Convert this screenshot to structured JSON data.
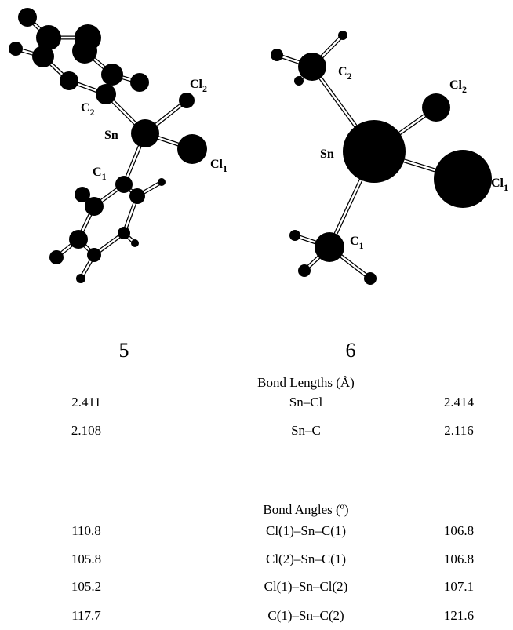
{
  "figures": [
    {
      "label": "5",
      "atoms": [
        {
          "symbol": "C",
          "subscript": "2"
        },
        {
          "symbol": "Sn"
        },
        {
          "symbol": "Cl",
          "subscript": "2"
        },
        {
          "symbol": "Cl",
          "subscript": "1"
        },
        {
          "symbol": "C",
          "subscript": "1"
        }
      ]
    },
    {
      "label": "6",
      "atoms": [
        {
          "symbol": "C",
          "subscript": "2"
        },
        {
          "symbol": "Cl",
          "subscript": "2"
        },
        {
          "symbol": "Sn"
        },
        {
          "symbol": "Cl",
          "subscript": "1"
        },
        {
          "symbol": "C",
          "subscript": "1"
        }
      ]
    }
  ],
  "tables": [
    {
      "title": "Bond Lengths (Å)",
      "rows": [
        [
          2.411,
          "Sn–Cl",
          2.414
        ],
        [
          2.108,
          "Sn–C",
          2.116
        ]
      ]
    },
    {
      "title": "Bond Angles (º)",
      "rows": [
        [
          110.8,
          "Cl(1)–Sn–C(1)",
          106.8
        ],
        [
          105.8,
          "Cl(2)–Sn–C(1)",
          106.8
        ],
        [
          105.2,
          "Cl(1)–Sn–Cl(2)",
          107.1
        ],
        [
          117.7,
          "C(1)–Sn–C(2)",
          121.6
        ]
      ]
    }
  ]
}
